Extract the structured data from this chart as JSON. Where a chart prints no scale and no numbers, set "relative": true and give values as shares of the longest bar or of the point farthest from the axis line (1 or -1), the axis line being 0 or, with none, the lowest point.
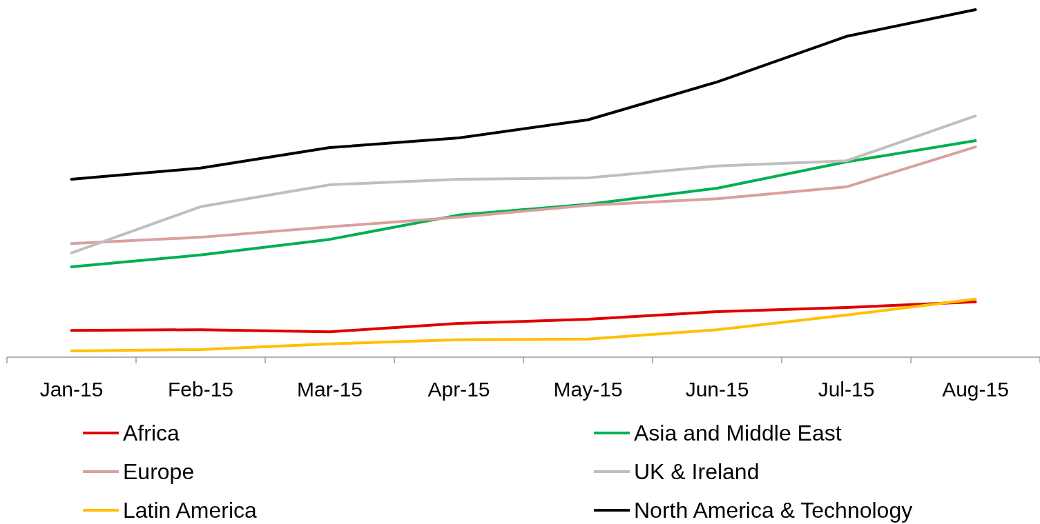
{
  "chart_data": {
    "type": "line",
    "relative": true,
    "categories": [
      "Jan-15",
      "Feb-15",
      "Mar-15",
      "Apr-15",
      "May-15",
      "Jun-15",
      "Jul-15",
      "Aug-15"
    ],
    "legend": "bottom",
    "series": [
      {
        "name": "Africa",
        "color": "#e00000",
        "values": [
          0.077,
          0.079,
          0.073,
          0.097,
          0.109,
          0.131,
          0.143,
          0.159
        ]
      },
      {
        "name": "Asia and Middle East",
        "color": "#00b050",
        "values": [
          0.26,
          0.294,
          0.339,
          0.409,
          0.44,
          0.486,
          0.562,
          0.623
        ]
      },
      {
        "name": "Europe",
        "color": "#d9a0a0",
        "values": [
          0.327,
          0.345,
          0.375,
          0.403,
          0.437,
          0.456,
          0.49,
          0.605
        ]
      },
      {
        "name": "UK & Ireland",
        "color": "#bfbfbf",
        "values": [
          0.3,
          0.433,
          0.496,
          0.512,
          0.516,
          0.55,
          0.565,
          0.694
        ]
      },
      {
        "name": "Latin America",
        "color": "#ffc000",
        "values": [
          0.018,
          0.022,
          0.038,
          0.05,
          0.052,
          0.079,
          0.121,
          0.167
        ]
      },
      {
        "name": "North America & Technology",
        "color": "#000000",
        "values": [
          0.512,
          0.544,
          0.603,
          0.631,
          0.683,
          0.792,
          0.923,
          1
        ]
      }
    ]
  }
}
